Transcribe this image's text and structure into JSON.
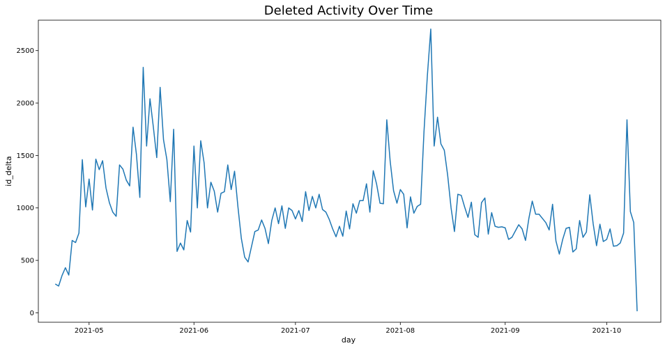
{
  "chart_data": {
    "type": "line",
    "title": "Deleted Activity Over Time",
    "xlabel": "day",
    "ylabel": "id_delta",
    "x_ticks": [
      "2021-05",
      "2021-06",
      "2021-07",
      "2021-08",
      "2021-09",
      "2021-10"
    ],
    "y_ticks": [
      "0",
      "500",
      "1000",
      "1500",
      "2000",
      "2500"
    ],
    "xlim": [
      "2021-04-16",
      "2021-10-17"
    ],
    "ylim": [
      -90,
      2790
    ],
    "grid": false,
    "series": [
      {
        "color": "#1f77b4",
        "x_start": "2021-04-21",
        "x_step_days": 1,
        "values": [
          275,
          255,
          355,
          430,
          360,
          690,
          670,
          760,
          1460,
          1010,
          1275,
          980,
          1465,
          1365,
          1450,
          1190,
          1050,
          960,
          920,
          1410,
          1370,
          1265,
          1210,
          1770,
          1510,
          1100,
          2340,
          1590,
          2040,
          1770,
          1480,
          2150,
          1650,
          1460,
          1060,
          1750,
          585,
          665,
          600,
          880,
          770,
          1590,
          1000,
          1640,
          1430,
          1000,
          1245,
          1160,
          960,
          1140,
          1155,
          1410,
          1175,
          1350,
          1010,
          710,
          530,
          485,
          630,
          775,
          790,
          885,
          805,
          660,
          880,
          1000,
          850,
          1020,
          805,
          1000,
          975,
          895,
          975,
          870,
          1155,
          975,
          1110,
          1000,
          1130,
          985,
          960,
          890,
          800,
          725,
          825,
          730,
          970,
          800,
          1040,
          950,
          1070,
          1070,
          1230,
          960,
          1355,
          1225,
          1045,
          1040,
          1840,
          1445,
          1165,
          1045,
          1175,
          1130,
          810,
          1105,
          950,
          1015,
          1035,
          1730,
          2265,
          2705,
          1590,
          1865,
          1610,
          1550,
          1310,
          1000,
          775,
          1130,
          1120,
          1010,
          910,
          1055,
          745,
          720,
          1050,
          1095,
          750,
          955,
          825,
          815,
          820,
          810,
          700,
          720,
          780,
          840,
          800,
          690,
          900,
          1065,
          940,
          940,
          900,
          860,
          790,
          1035,
          685,
          560,
          700,
          805,
          815,
          580,
          610,
          880,
          720,
          770,
          1125,
          850,
          640,
          845,
          680,
          700,
          800,
          635,
          640,
          665,
          760,
          1840,
          965,
          860,
          15
        ]
      }
    ]
  }
}
